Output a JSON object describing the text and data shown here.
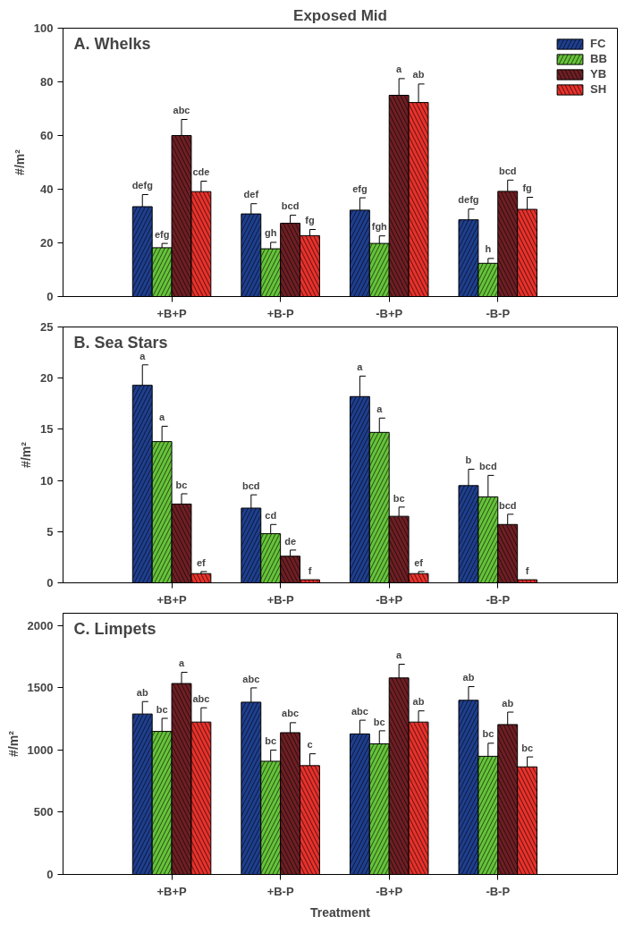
{
  "chart_data": [
    {
      "type": "bar",
      "title": "Exposed Mid",
      "annotations": [
        "A. Whelks"
      ],
      "ylabel": "#/m²",
      "categories": [
        "+B+P",
        "+B-P",
        "-B+P",
        "-B-P"
      ],
      "ylim": [
        0,
        100
      ],
      "yticks": [
        0,
        20,
        40,
        60,
        80,
        100
      ],
      "grid": false,
      "legend": "top right",
      "series": [
        {
          "name": "FC",
          "color": "#1f3f8f",
          "values": [
            33.5,
            30.8,
            32.2,
            28.6
          ],
          "errors": [
            4.5,
            3.8,
            4.6,
            4.0
          ],
          "value_labels": [
            "defg",
            "def",
            "efg",
            "defg"
          ]
        },
        {
          "name": "BB",
          "color": "#66c33a",
          "values": [
            18.2,
            17.8,
            19.8,
            12.4
          ],
          "errors": [
            1.6,
            2.4,
            2.8,
            1.8
          ],
          "value_labels": [
            "efg",
            "gh",
            "fgh",
            "h"
          ]
        },
        {
          "name": "YB",
          "color": "#6e1f24",
          "values": [
            60,
            27.3,
            75,
            39.2
          ],
          "errors": [
            6,
            3,
            6.2,
            4.2
          ],
          "value_labels": [
            "abc",
            "bcd",
            "a",
            "bcd"
          ]
        },
        {
          "name": "SH",
          "color": "#e8312b",
          "values": [
            39.1,
            22.7,
            72.3,
            32.5
          ],
          "errors": [
            3.9,
            2.3,
            6.9,
            4.5
          ],
          "value_labels": [
            "cde",
            "fg",
            "ab",
            "fg"
          ]
        }
      ]
    },
    {
      "type": "bar",
      "annotations": [
        "B. Sea Stars"
      ],
      "ylabel": "#/m²",
      "categories": [
        "+B+P",
        "+B-P",
        "-B+P",
        "-B-P"
      ],
      "ylim": [
        0,
        25
      ],
      "yticks": [
        0,
        5,
        10,
        15,
        20,
        25
      ],
      "grid": false,
      "series": [
        {
          "color": "#1f3f8f",
          "values": [
            19.3,
            7.3,
            18.2,
            9.5
          ],
          "errors": [
            2,
            1.3,
            2,
            1.6
          ],
          "value_labels": [
            "a",
            "bcd",
            "a",
            "b"
          ]
        },
        {
          "color": "#66c33a",
          "values": [
            13.8,
            4.8,
            14.7,
            8.4
          ],
          "errors": [
            1.5,
            0.9,
            1.4,
            2.1
          ],
          "value_labels": [
            "a",
            "cd",
            "a",
            "bcd"
          ]
        },
        {
          "color": "#6e1f24",
          "values": [
            7.7,
            2.6,
            6.5,
            5.7
          ],
          "errors": [
            1,
            0.6,
            0.9,
            1
          ],
          "value_labels": [
            "bc",
            "de",
            "bc",
            "bcd"
          ]
        },
        {
          "color": "#e8312b",
          "values": [
            0.9,
            0.3,
            0.9,
            0.3
          ],
          "errors": [
            0.2,
            null,
            0.2,
            null
          ],
          "value_labels": [
            "ef",
            "f",
            "ef",
            "f"
          ]
        }
      ]
    },
    {
      "type": "bar",
      "annotations": [
        "C. Limpets"
      ],
      "ylabel": "#/m²",
      "xlabel": "Treatment",
      "categories": [
        "+B+P",
        "+B-P",
        "-B+P",
        "-B-P"
      ],
      "ylim": [
        0,
        2100
      ],
      "yticks": [
        0,
        500,
        1000,
        1500,
        2000
      ],
      "grid": false,
      "series": [
        {
          "color": "#1f3f8f",
          "values": [
            1290,
            1385,
            1130,
            1400
          ],
          "errors": [
            100,
            115,
            110,
            110
          ],
          "value_labels": [
            "ab",
            "abc",
            "abc",
            "ab"
          ]
        },
        {
          "color": "#66c33a",
          "values": [
            1150,
            910,
            1050,
            950
          ],
          "errors": [
            105,
            90,
            105,
            105
          ],
          "value_labels": [
            "bc",
            "bc",
            "bc",
            "bc"
          ]
        },
        {
          "color": "#6e1f24",
          "values": [
            1535,
            1140,
            1580,
            1205
          ],
          "errors": [
            90,
            80,
            110,
            100
          ],
          "value_labels": [
            "a",
            "abc",
            "a",
            "ab"
          ]
        },
        {
          "color": "#e8312b",
          "values": [
            1225,
            875,
            1225,
            865
          ],
          "errors": [
            115,
            95,
            90,
            80
          ],
          "value_labels": [
            "abc",
            "c",
            "ab",
            "bc"
          ]
        }
      ]
    }
  ]
}
